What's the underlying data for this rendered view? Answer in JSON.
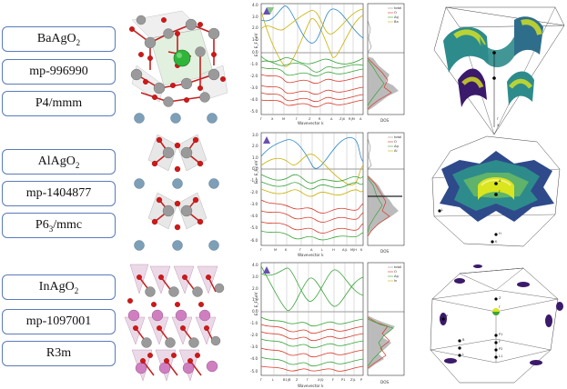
{
  "rows": [
    {
      "compound_main": "BaAgO",
      "compound_sub": "2",
      "mp_id": "mp-996990",
      "space_group": "P4/mmm",
      "band_axis_label": "Wavevector k",
      "dos_label": "DOS",
      "energy_label": "E − E_F / eV",
      "y_ticks": [
        "4.0",
        "3.0",
        "2.0",
        "1.0",
        "0.0",
        "-1.0",
        "-2.0",
        "-3.0",
        "-4.0",
        "-5.0"
      ],
      "k_points": [
        "Γ",
        "X",
        "M",
        "Γ",
        "Z",
        "R",
        "A",
        "Z|X",
        "R|M",
        "A"
      ],
      "legend": [
        "total",
        "O",
        "Ag",
        "Ba"
      ],
      "bz_labels": [
        "Γ",
        "R",
        "Z",
        "M",
        "X"
      ]
    },
    {
      "compound_main": "AlAgO",
      "compound_sub": "2",
      "mp_id": "mp-1404877",
      "space_group_main": "P6",
      "space_group_sub": "3",
      "space_group_rest": "/mmc",
      "band_axis_label": "Wavevector k",
      "dos_label": "DOS",
      "energy_label": "E − E_F / eV",
      "y_ticks": [
        "3.0",
        "2.0",
        "1.0",
        "0.0",
        "-1.0",
        "-2.0",
        "-3.0",
        "-4.0",
        "-5.0",
        "-6.0"
      ],
      "k_points": [
        "Γ",
        "M",
        "K",
        "Γ",
        "A",
        "L",
        "H",
        "A|L",
        "M|H",
        "K"
      ],
      "legend": [
        "total",
        "O",
        "Ag",
        "Al"
      ],
      "bz_labels": [
        "A",
        "L",
        "Γ",
        "M",
        "H",
        "K"
      ]
    },
    {
      "compound_main": "InAgO",
      "compound_sub": "2",
      "mp_id": "mp-1097001",
      "space_group": "R3m",
      "band_axis_label": "Wavevector k",
      "dos_label": "DOS",
      "energy_label": "E − E_F / eV",
      "y_ticks": [
        "4.0",
        "3.0",
        "2.0",
        "1.0",
        "0.0",
        "-1.0",
        "-2.0",
        "-3.0",
        "-4.0",
        "-5.0"
      ],
      "k_points": [
        "Γ",
        "L",
        "B1|B",
        "Z",
        "Γ",
        "X|Q",
        "F",
        "P1",
        "Z|L",
        "P"
      ],
      "legend": [
        "total",
        "O",
        "Ag",
        "In"
      ],
      "bz_labels": [
        "Z",
        "Γ",
        "P",
        "B",
        "P1",
        "F",
        "P2",
        "L1",
        "L"
      ]
    }
  ],
  "colors": {
    "box_border": "#5a7bb8",
    "ag": "#9a9a9a",
    "oxygen": "#d01818",
    "ba": "#2fb63a",
    "al": "#7e9fb8",
    "in": "#cf7fc0",
    "band_red": "#d73a2a",
    "band_green": "#3aa43a",
    "band_yellow": "#c9b000",
    "band_blue": "#2b86c9",
    "surface_dark": "#3b1a6b",
    "surface_mid": "#2e8b8b",
    "surface_light": "#d9e51f"
  }
}
